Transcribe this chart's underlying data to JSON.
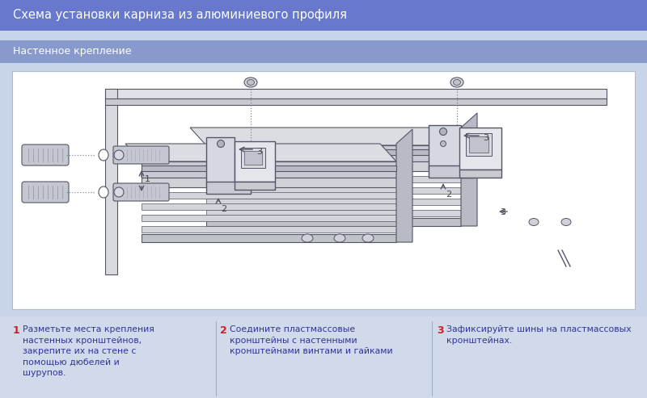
{
  "title": "Схема установки карниза из алюминиевого профиля",
  "subtitle": "Настенное крепление",
  "title_bg": "#6878cc",
  "subtitle_bg": "#8899cc",
  "page_bg": "#c8d4ea",
  "content_bg": "#ffffff",
  "bottom_bg": "#d0daea",
  "step1_num": "1",
  "step1_text": "Разметьте места крепления\nнастенных кронштейнов,\nзакрепите их на стене с\nпомощью дюбелей и\nшурупов.",
  "step2_num": "2",
  "step2_text": "Соедините пластмассовые\nкронштейны с настенными\nкронштейнами винтами и гайками",
  "step3_num": "3",
  "step3_text": "Зафиксируйте шины на пластмассовых\nкронштейнах.",
  "num_color": "#cc2222",
  "text_color": "#333399",
  "title_text_color": "#ffffff",
  "subtitle_text_color": "#ffffff",
  "line_color": "#555566",
  "fig_width": 8.0,
  "fig_height": 4.93,
  "dpi": 100
}
